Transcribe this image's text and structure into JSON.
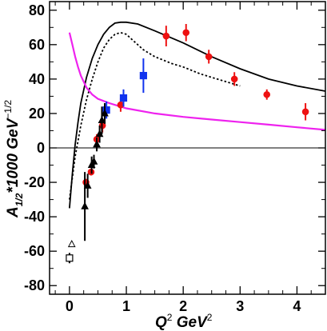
{
  "chart_data": {
    "type": "scatter",
    "xlim": [
      -0.35,
      4.5
    ],
    "ylim": [
      -85,
      85
    ],
    "x_ticks": [
      "0",
      "1",
      "2",
      "3",
      "4"
    ],
    "x_tick_values": [
      0,
      1,
      2,
      3,
      4
    ],
    "y_ticks": [
      "80",
      "60",
      "40",
      "20",
      "0",
      "-20",
      "-40",
      "-60",
      "-80"
    ],
    "y_tick_values": [
      80,
      60,
      40,
      20,
      0,
      -20,
      -40,
      -60,
      -80
    ],
    "xlabel": {
      "base": "Q",
      "sup1": "2",
      "mid": " GeV",
      "sup2": "2"
    },
    "ylabel": {
      "base": "A",
      "sub": "1/2",
      "mid": "*1000 GeV",
      "sup": "−1/2"
    },
    "grid": false,
    "zero_line": true,
    "colors": {
      "red": "#ee1111",
      "blue": "#1133ee",
      "magenta": "#ee22ee",
      "black": "#000000"
    },
    "curves": [
      {
        "style": "solid",
        "color": "#000000",
        "points": [
          [
            0,
            -35
          ],
          [
            0.05,
            -15
          ],
          [
            0.1,
            2
          ],
          [
            0.15,
            15
          ],
          [
            0.2,
            26
          ],
          [
            0.3,
            41
          ],
          [
            0.4,
            52
          ],
          [
            0.5,
            60
          ],
          [
            0.6,
            66
          ],
          [
            0.7,
            70
          ],
          [
            0.8,
            72.5
          ],
          [
            0.9,
            73
          ],
          [
            1.0,
            73
          ],
          [
            1.2,
            72
          ],
          [
            1.5,
            68
          ],
          [
            2.0,
            61
          ],
          [
            2.5,
            53
          ],
          [
            3.0,
            46
          ],
          [
            3.5,
            40
          ],
          [
            4.0,
            36
          ],
          [
            4.5,
            33
          ]
        ]
      },
      {
        "style": "dotted",
        "color": "#000000",
        "points": [
          [
            0,
            -30
          ],
          [
            0.1,
            -5
          ],
          [
            0.2,
            13
          ],
          [
            0.3,
            28
          ],
          [
            0.4,
            40
          ],
          [
            0.5,
            50
          ],
          [
            0.6,
            58
          ],
          [
            0.7,
            63
          ],
          [
            0.8,
            66
          ],
          [
            0.9,
            67
          ],
          [
            1.0,
            66
          ],
          [
            1.1,
            63
          ],
          [
            1.3,
            57
          ],
          [
            1.5,
            53
          ],
          [
            1.8,
            49
          ],
          [
            2.0,
            47
          ],
          [
            2.3,
            43
          ],
          [
            2.6,
            40
          ],
          [
            2.9,
            37
          ],
          [
            3.0,
            36
          ]
        ]
      },
      {
        "style": "solid",
        "color": "#ee22ee",
        "points": [
          [
            0,
            67
          ],
          [
            0.05,
            60
          ],
          [
            0.1,
            53
          ],
          [
            0.15,
            47
          ],
          [
            0.2,
            42
          ],
          [
            0.3,
            35
          ],
          [
            0.4,
            31
          ],
          [
            0.5,
            28.5
          ],
          [
            0.7,
            26
          ],
          [
            1.0,
            23
          ],
          [
            1.5,
            20
          ],
          [
            2.0,
            18
          ],
          [
            2.5,
            16.5
          ],
          [
            3.0,
            15
          ],
          [
            3.5,
            13.5
          ],
          [
            4.0,
            12
          ],
          [
            4.5,
            10.5
          ]
        ]
      }
    ],
    "series": [
      {
        "marker": "circle",
        "color": "#ee1111",
        "filled": true,
        "points": [
          {
            "x": 0.29,
            "y": -20,
            "err": 2
          },
          {
            "x": 0.38,
            "y": -14,
            "err": 2
          },
          {
            "x": 0.48,
            "y": 5,
            "err": 3
          },
          {
            "x": 0.58,
            "y": 13,
            "err": 4
          },
          {
            "x": 0.9,
            "y": 25,
            "err": 4
          },
          {
            "x": 1.7,
            "y": 65,
            "err": 6
          },
          {
            "x": 2.05,
            "y": 67,
            "err": 5
          },
          {
            "x": 2.45,
            "y": 53,
            "err": 4
          },
          {
            "x": 2.9,
            "y": 40,
            "err": 4
          },
          {
            "x": 3.47,
            "y": 31,
            "err": 3
          },
          {
            "x": 4.15,
            "y": 21,
            "err": 5
          }
        ]
      },
      {
        "marker": "square",
        "color": "#1133ee",
        "filled": true,
        "points": [
          {
            "x": 0.65,
            "y": 22,
            "err": 5
          },
          {
            "x": 0.95,
            "y": 29,
            "err": 5
          },
          {
            "x": 1.3,
            "y": 42,
            "err": 10
          }
        ]
      },
      {
        "marker": "triangle",
        "color": "#000000",
        "filled": true,
        "points": [
          {
            "x": 0.27,
            "y": -34,
            "err": 20
          },
          {
            "x": 0.32,
            "y": -22,
            "err": 7
          },
          {
            "x": 0.39,
            "y": -10,
            "err": 5
          },
          {
            "x": 0.43,
            "y": -8,
            "err": 4
          },
          {
            "x": 0.48,
            "y": 2,
            "err": 4
          },
          {
            "x": 0.53,
            "y": 8,
            "err": 5
          },
          {
            "x": 0.57,
            "y": 16,
            "err": 8
          },
          {
            "x": 0.62,
            "y": 20,
            "err": 6
          }
        ]
      },
      {
        "marker": "triangle",
        "color": "#000000",
        "filled": false,
        "points": [
          {
            "x": 0.04,
            "y": -56,
            "err": 0
          }
        ]
      },
      {
        "marker": "square",
        "color": "#000000",
        "filled": false,
        "points": [
          {
            "x": 0.0,
            "y": -64,
            "err": 3
          }
        ]
      }
    ]
  }
}
